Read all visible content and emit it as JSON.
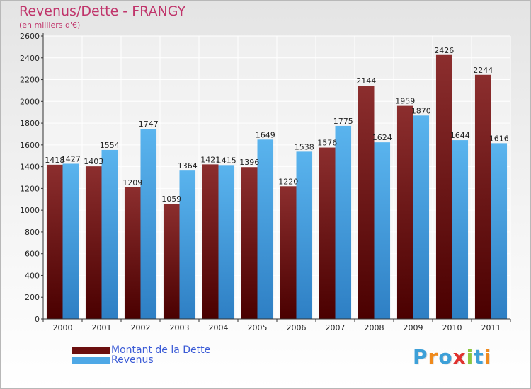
{
  "chart_data": {
    "type": "bar",
    "title": "Revenus/Dette - FRANGY",
    "subtitle": "(en milliers d'€)",
    "xlabel": "",
    "ylabel": "",
    "ylim": [
      0,
      2600
    ],
    "yticks": [
      0,
      200,
      400,
      600,
      800,
      1000,
      1200,
      1400,
      1600,
      1800,
      2000,
      2200,
      2400,
      2600
    ],
    "grid": true,
    "categories": [
      "2000",
      "2001",
      "2002",
      "2003",
      "2004",
      "2005",
      "2006",
      "2007",
      "2008",
      "2009",
      "2010",
      "2011"
    ],
    "series": [
      {
        "name": "Montant de la Dette",
        "color": "#7a1a1a",
        "values": [
          1418,
          1403,
          1209,
          1059,
          1421,
          1396,
          1220,
          1576,
          2144,
          1959,
          2426,
          2244
        ],
        "labels": [
          "1418",
          "1403",
          "1209",
          "1059",
          "1421",
          "1396",
          "1220",
          "1576",
          "2144",
          "1959",
          "2426",
          "2244"
        ]
      },
      {
        "name": "Revenus",
        "color": "#4ea8e6",
        "values": [
          1427,
          1554,
          1747,
          1364,
          1415,
          1649,
          1538,
          1775,
          1624,
          1870,
          1644,
          1616
        ],
        "labels": [
          "1427",
          "1554",
          "1747",
          "1364",
          "1415",
          "1649",
          "1538",
          "1775",
          "1624",
          "1870",
          "1644",
          "1616"
        ]
      }
    ]
  },
  "legend": {
    "items": [
      {
        "label": "Montant de la Dette",
        "color": "#6b0f0f"
      },
      {
        "label": "Revenus",
        "color": "#4ea8e6"
      }
    ]
  },
  "brand": {
    "text": "Proxiti",
    "letters": [
      {
        "ch": "P",
        "color": "#3da0d8"
      },
      {
        "ch": "r",
        "color": "#f08a1c"
      },
      {
        "ch": "o",
        "color": "#3da0d8"
      },
      {
        "ch": "x",
        "color": "#e0322f"
      },
      {
        "ch": "i",
        "color": "#8cc63f"
      },
      {
        "ch": "t",
        "color": "#3da0d8"
      },
      {
        "ch": "i",
        "color": "#f08a1c"
      }
    ]
  }
}
